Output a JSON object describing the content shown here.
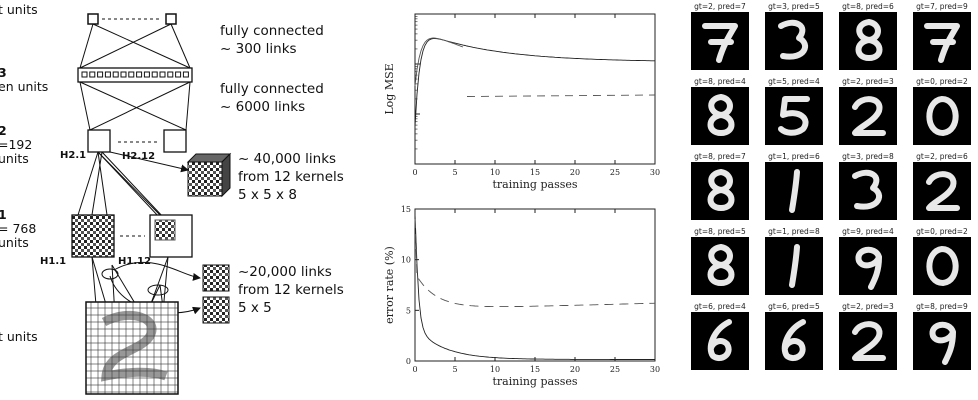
{
  "network": {
    "layer_labels": [
      {
        "id": "output",
        "lines": [
          "t units"
        ]
      },
      {
        "id": "h3",
        "lines": [
          "3",
          "en units"
        ]
      },
      {
        "id": "h2",
        "lines": [
          "2",
          "=192",
          "units"
        ]
      },
      {
        "id": "h1",
        "lines": [
          "1",
          "= 768",
          "units"
        ]
      },
      {
        "id": "input",
        "lines": [
          "t  units"
        ]
      }
    ],
    "map_labels": {
      "h2_1": "H2.1",
      "h2_12": "H2.12",
      "h1_1": "H1.1",
      "h1_12": "H1.12"
    },
    "connection_notes": [
      {
        "id": "fc-300",
        "lines": [
          "fully  connected",
          "~ 300  links"
        ]
      },
      {
        "id": "fc-6000",
        "lines": [
          "fully  connected",
          "~ 6000  links"
        ]
      },
      {
        "id": "kernels-40000",
        "lines": [
          "~ 40,000  links",
          "from  12  kernels",
          "5 x 5 x 8"
        ]
      },
      {
        "id": "kernels-20000",
        "lines": [
          "~20,000  links",
          "from  12  kernels",
          "5 x 5"
        ]
      }
    ]
  },
  "charts": {
    "mse": {
      "ylabel": "Log MSE",
      "xlabel": "training passes",
      "x_ticks": [
        "0",
        "5",
        "10",
        "15",
        "20",
        "25",
        "30"
      ]
    },
    "error": {
      "ylabel": "error rate (%)",
      "xlabel": "training passes",
      "x_ticks": [
        "0",
        "5",
        "10",
        "15",
        "20",
        "25",
        "30"
      ],
      "y_ticks": [
        "0",
        "5",
        "10",
        "15"
      ]
    }
  },
  "digits": [
    {
      "caption": "gt=2, pred=7",
      "shape": "7"
    },
    {
      "caption": "gt=3, pred=5",
      "shape": "3"
    },
    {
      "caption": "gt=8, pred=6",
      "shape": "8"
    },
    {
      "caption": "gt=7, pred=9",
      "shape": "7"
    },
    {
      "caption": "gt=8, pred=4",
      "shape": "8"
    },
    {
      "caption": "gt=5, pred=4",
      "shape": "5"
    },
    {
      "caption": "gt=2, pred=3",
      "shape": "2"
    },
    {
      "caption": "gt=0, pred=2",
      "shape": "0"
    },
    {
      "caption": "gt=8, pred=7",
      "shape": "8"
    },
    {
      "caption": "gt=1, pred=6",
      "shape": "1"
    },
    {
      "caption": "gt=3, pred=8",
      "shape": "3"
    },
    {
      "caption": "gt=2, pred=6",
      "shape": "2"
    },
    {
      "caption": "gt=8, pred=5",
      "shape": "8"
    },
    {
      "caption": "gt=1, pred=8",
      "shape": "1"
    },
    {
      "caption": "gt=9, pred=4",
      "shape": "9"
    },
    {
      "caption": "gt=0, pred=2",
      "shape": "0"
    },
    {
      "caption": "gt=6, pred=4",
      "shape": "6"
    },
    {
      "caption": "gt=6, pred=5",
      "shape": "6"
    },
    {
      "caption": "gt=2, pred=3",
      "shape": "2"
    },
    {
      "caption": "gt=8, pred=9",
      "shape": "9"
    }
  ]
}
